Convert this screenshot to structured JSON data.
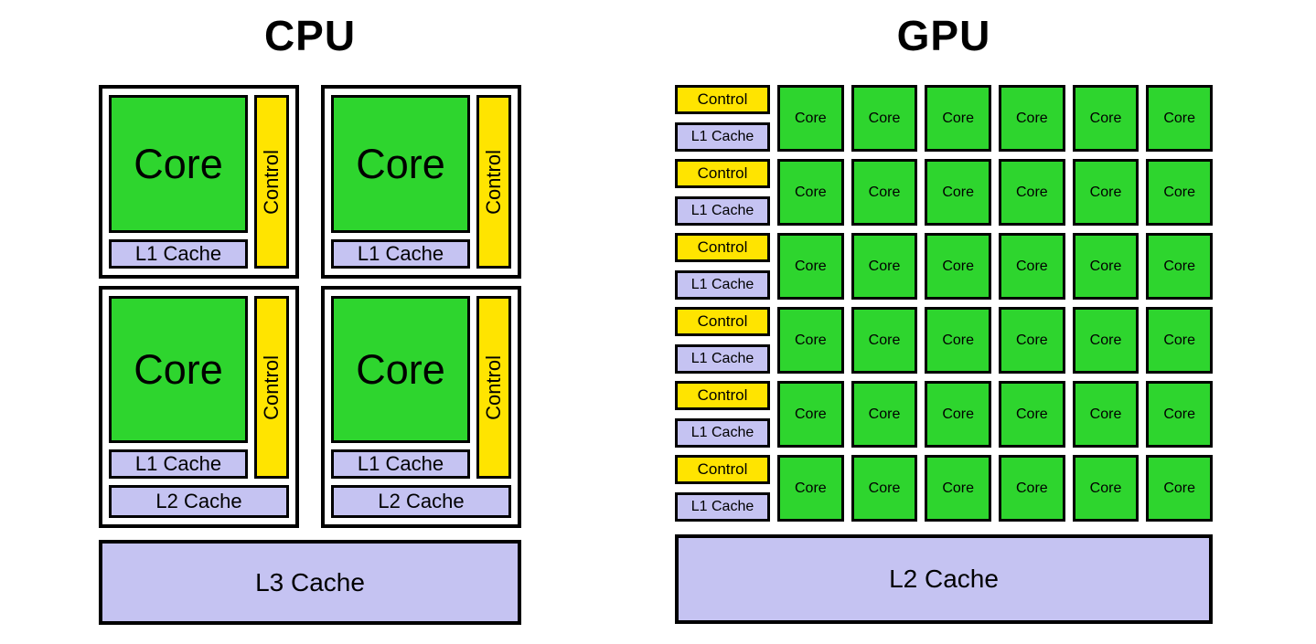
{
  "cpu": {
    "title": "CPU",
    "core_label": "Core",
    "control_label": "Control",
    "l1_cache_label": "L1 Cache",
    "l2_cache_label": "L2 Cache",
    "l3_cache_label": "L3 Cache"
  },
  "gpu": {
    "title": "GPU",
    "control_label": "Control",
    "l1_cache_label": "L1 Cache",
    "core_label": "Core",
    "l2_cache_label": "L2 Cache",
    "grid": {
      "rows": 6,
      "core_columns": 6
    }
  },
  "colors": {
    "core_green": "#2ed52e",
    "control_yellow": "#ffe400",
    "cache_lavender": "#c5c3f2",
    "border_black": "#000000",
    "background": "#ffffff"
  }
}
